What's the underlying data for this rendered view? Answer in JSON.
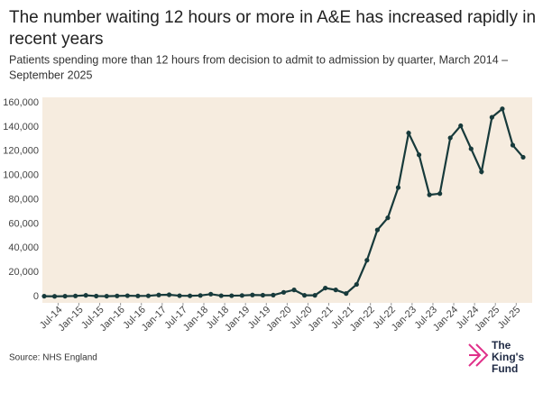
{
  "chart_data": {
    "type": "line",
    "title": [
      "The number waiting 12 hours or more in A&E has increased rapidly in",
      "recent years"
    ],
    "subtitle": [
      "Patients spending more than 12 hours from decision to admit to admission by quarter, March 2014 –",
      "September 2025"
    ],
    "source": "Source: NHS England",
    "logo": [
      "The",
      "King's",
      "Fund"
    ],
    "x": [
      "2014-03",
      "2014-06",
      "2014-09",
      "2014-12",
      "2015-03",
      "2015-06",
      "2015-09",
      "2015-12",
      "2016-03",
      "2016-06",
      "2016-09",
      "2016-12",
      "2017-03",
      "2017-06",
      "2017-09",
      "2017-12",
      "2018-03",
      "2018-06",
      "2018-09",
      "2018-12",
      "2019-03",
      "2019-06",
      "2019-09",
      "2019-12",
      "2020-03",
      "2020-06",
      "2020-09",
      "2020-12",
      "2021-03",
      "2021-06",
      "2021-09",
      "2021-12",
      "2022-03",
      "2022-06",
      "2022-09",
      "2022-12",
      "2023-03",
      "2023-06",
      "2023-09",
      "2023-12",
      "2024-03",
      "2024-06",
      "2024-09",
      "2024-12",
      "2025-03",
      "2025-06",
      "2025-09"
    ],
    "series": [
      {
        "color": "#173a3b",
        "values": [
          300,
          200,
          300,
          500,
          1000,
          400,
          300,
          500,
          700,
          500,
          600,
          1300,
          1500,
          700,
          600,
          900,
          2000,
          700,
          700,
          900,
          1300,
          1100,
          1200,
          3500,
          5500,
          1000,
          1000,
          7000,
          5500,
          2500,
          10000,
          30000,
          55000,
          65000,
          90000,
          135000,
          117000,
          84000,
          85000,
          131000,
          141000,
          122000,
          103000,
          148000,
          155000,
          125000,
          115000
        ]
      }
    ],
    "ylim": [
      0,
      160000
    ],
    "yticks": [
      0,
      {
        "value": 20000,
        "label": "20,000"
      },
      {
        "value": 40000,
        "label": "40,000"
      },
      {
        "value": 60000,
        "label": "60,000"
      },
      {
        "value": 80000,
        "label": "80,000"
      },
      {
        "value": 100000,
        "label": "100,000"
      },
      {
        "value": 120000,
        "label": "120,000"
      },
      {
        "value": 140000,
        "label": "140,000"
      },
      {
        "value": 160000,
        "label": "160,000"
      }
    ],
    "xticks": [
      {
        "value": "2014-07",
        "label": "Jul-14"
      },
      {
        "value": "2015-01",
        "label": "Jan-15"
      },
      {
        "value": "2015-07",
        "label": "Jul-15"
      },
      {
        "value": "2016-01",
        "label": "Jan-16"
      },
      {
        "value": "2016-07",
        "label": "Jul-16"
      },
      {
        "value": "2017-01",
        "label": "Jan-17"
      },
      {
        "value": "2017-07",
        "label": "Jul-17"
      },
      {
        "value": "2018-01",
        "label": "Jan-18"
      },
      {
        "value": "2018-07",
        "label": "Jul-18"
      },
      {
        "value": "2019-01",
        "label": "Jan-19"
      },
      {
        "value": "2019-07",
        "label": "Jul-19"
      },
      {
        "value": "2020-01",
        "label": "Jan-20"
      },
      {
        "value": "2020-07",
        "label": "Jul-20"
      },
      {
        "value": "2021-01",
        "label": "Jan-21"
      },
      {
        "value": "2021-07",
        "label": "Jul-21"
      },
      {
        "value": "2022-01",
        "label": "Jan-22"
      },
      {
        "value": "2022-07",
        "label": "Jul-22"
      },
      {
        "value": "2023-01",
        "label": "Jan-23"
      },
      {
        "value": "2023-07",
        "label": "Jul-23"
      },
      {
        "value": "2024-01",
        "label": "Jan-24"
      },
      {
        "value": "2024-07",
        "label": "Jul-24"
      },
      {
        "value": "2025-01",
        "label": "Jan-25"
      },
      {
        "value": "2025-07",
        "label": "Jul-25"
      }
    ],
    "grid": false,
    "plot_background": "#f6ecdf"
  }
}
